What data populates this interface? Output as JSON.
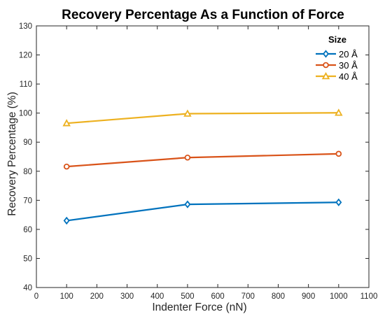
{
  "chart_data": {
    "type": "line",
    "title": "Recovery Percentage As a Function of Force",
    "xlabel": "Indenter Force (nN)",
    "ylabel": "Recovery Percentage (%)",
    "xlim": [
      0,
      1100
    ],
    "ylim": [
      40,
      130
    ],
    "x_ticks": [
      0,
      100,
      200,
      300,
      400,
      500,
      600,
      700,
      800,
      900,
      1000,
      1100
    ],
    "y_ticks": [
      40,
      50,
      60,
      70,
      80,
      90,
      100,
      110,
      120,
      130
    ],
    "grid": false,
    "legend": {
      "title": "Size",
      "placement": "top-right"
    },
    "x": [
      100,
      500,
      1000
    ],
    "series": [
      {
        "name": "20 Å",
        "values": [
          63.0,
          68.6,
          69.3
        ],
        "color": "#0072BD",
        "marker": "diamond"
      },
      {
        "name": "30 Å",
        "values": [
          81.6,
          84.7,
          86.0
        ],
        "color": "#D95319",
        "marker": "circle"
      },
      {
        "name": "40 Å",
        "values": [
          96.5,
          99.8,
          100.1
        ],
        "color": "#EDB120",
        "marker": "triangle"
      }
    ]
  }
}
